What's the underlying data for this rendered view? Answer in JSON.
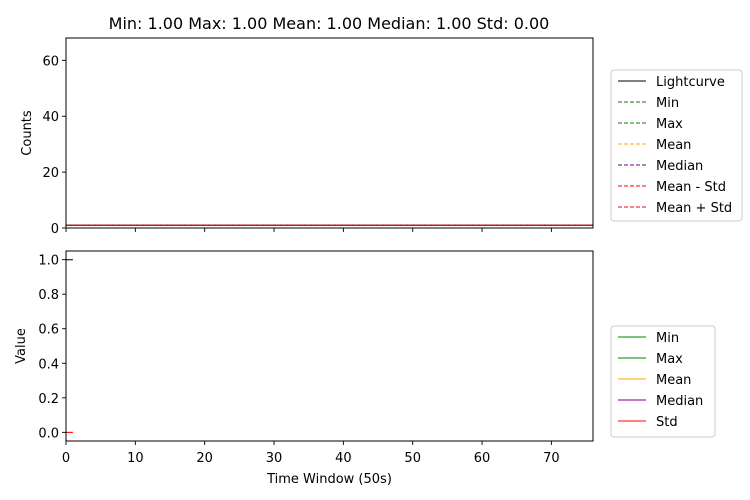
{
  "chart_data": [
    {
      "type": "line",
      "title": "Min: 1.00 Max: 1.00 Mean: 1.00 Median: 1.00 Std: 0.00",
      "xlabel": "",
      "ylabel": "Counts",
      "xlim": [
        0,
        76
      ],
      "ylim": [
        0,
        68
      ],
      "xticks": [
        0,
        10,
        20,
        30,
        40,
        50,
        60,
        70
      ],
      "yticks": [
        "0",
        "20",
        "40",
        "60"
      ],
      "ytick_values": [
        0,
        20,
        40,
        60
      ],
      "grid": false,
      "legend_position": "right",
      "series": [
        {
          "name": "Lightcurve",
          "color": "#000000",
          "style": "solid",
          "x": [
            0,
            76
          ],
          "y": [
            1,
            1
          ]
        },
        {
          "name": "Min",
          "color": "#008000",
          "style": "dashed",
          "x": [
            0,
            76
          ],
          "y": [
            1,
            1
          ]
        },
        {
          "name": "Max",
          "color": "#008000",
          "style": "dashed",
          "x": [
            0,
            76
          ],
          "y": [
            1,
            1
          ]
        },
        {
          "name": "Mean",
          "color": "#ffa500",
          "style": "dashed",
          "x": [
            0,
            76
          ],
          "y": [
            1,
            1
          ]
        },
        {
          "name": "Median",
          "color": "#800080",
          "style": "dashed",
          "x": [
            0,
            76
          ],
          "y": [
            1,
            1
          ]
        },
        {
          "name": "Mean - Std",
          "color": "#ff0000",
          "style": "dashed",
          "x": [
            0,
            76
          ],
          "y": [
            1,
            1
          ]
        },
        {
          "name": "Mean + Std",
          "color": "#ff0000",
          "style": "dashed",
          "x": [
            0,
            76
          ],
          "y": [
            1,
            1
          ]
        }
      ]
    },
    {
      "type": "line",
      "title": "",
      "xlabel": "Time Window (50s)",
      "ylabel": "Value",
      "xlim": [
        0,
        76
      ],
      "ylim": [
        -0.05,
        1.05
      ],
      "xticks": [
        0,
        10,
        20,
        30,
        40,
        50,
        60,
        70
      ],
      "yticks": [
        "0.0",
        "0.2",
        "0.4",
        "0.6",
        "0.8",
        "1.0"
      ],
      "ytick_values": [
        0,
        0.2,
        0.4,
        0.6,
        0.8,
        1.0
      ],
      "grid": false,
      "legend_position": "right",
      "series": [
        {
          "name": "Min",
          "color": "#008000",
          "style": "solid",
          "x": [
            0,
            1
          ],
          "y": [
            1,
            1
          ]
        },
        {
          "name": "Max",
          "color": "#008000",
          "style": "solid",
          "x": [
            0,
            1
          ],
          "y": [
            1,
            1
          ]
        },
        {
          "name": "Mean",
          "color": "#ffa500",
          "style": "solid",
          "x": [
            0,
            1
          ],
          "y": [
            1,
            1
          ]
        },
        {
          "name": "Median",
          "color": "#800080",
          "style": "solid",
          "x": [
            0,
            1
          ],
          "y": [
            1,
            1
          ]
        },
        {
          "name": "Std",
          "color": "#ff0000",
          "style": "solid",
          "x": [
            0,
            1
          ],
          "y": [
            0,
            0
          ]
        }
      ]
    }
  ]
}
